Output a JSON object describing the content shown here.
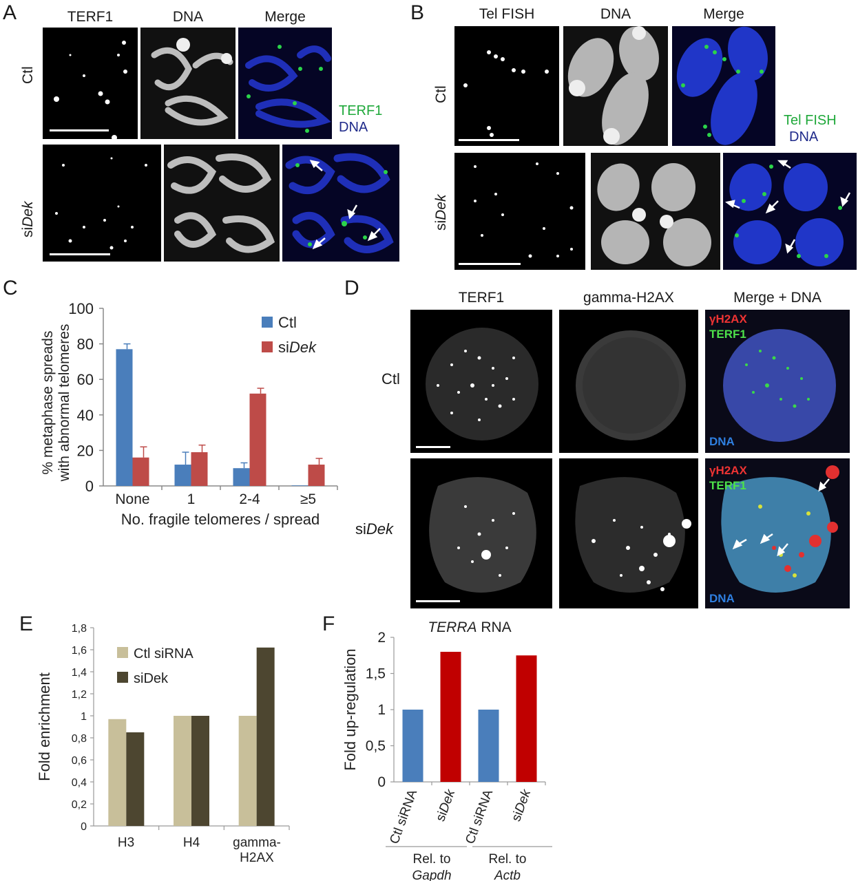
{
  "panels": {
    "A": {
      "letter": "A",
      "columns": [
        "TERF1",
        "DNA",
        "Merge"
      ],
      "rows": [
        "Ctl",
        "siDek"
      ],
      "legend": [
        "TERF1",
        "DNA"
      ]
    },
    "B": {
      "letter": "B",
      "columns": [
        "Tel FISH",
        "DNA",
        "Merge"
      ],
      "rows": [
        "Ctl",
        "siDek"
      ],
      "legend": [
        "Tel FISH",
        "DNA"
      ]
    },
    "D": {
      "letter": "D",
      "columns": [
        "TERF1",
        "gamma-H2AX",
        "Merge + DNA"
      ],
      "rows": [
        "Ctl",
        "siDek"
      ],
      "overlay": [
        "γH2AX",
        "TERF1",
        "DNA"
      ]
    }
  },
  "charts": {
    "C": {
      "letter": "C"
    },
    "E": {
      "letter": "E"
    },
    "F": {
      "letter": "F"
    }
  },
  "chart_data": [
    {
      "panel": "C",
      "type": "bar",
      "ylabel": "% metaphase spreads with abnormal telomeres",
      "xlabel": "No. fragile telomeres / spread",
      "categories": [
        "None",
        "1",
        "2-4",
        "≥5"
      ],
      "ylim": [
        0,
        100
      ],
      "yticks": [
        0,
        20,
        40,
        60,
        80,
        100
      ],
      "legend_position": "top-right",
      "series": [
        {
          "name": "Ctl",
          "color": "#4a7ebb",
          "values": [
            77,
            12,
            10,
            0.3
          ],
          "errors": [
            3,
            7,
            3,
            0
          ]
        },
        {
          "name": "siDek",
          "color": "#be4b48",
          "values": [
            16,
            19,
            52,
            12
          ],
          "errors": [
            6,
            4,
            3,
            3.5
          ]
        }
      ]
    },
    {
      "panel": "E",
      "type": "bar",
      "ylabel": "Fold enrichment",
      "categories": [
        "H3",
        "H4",
        "gamma-H2AX"
      ],
      "ylim": [
        0,
        1.8
      ],
      "yticks": [
        "0",
        "0,2",
        "0,4",
        "0,6",
        "0,8",
        "1",
        "1,2",
        "1,4",
        "1,6",
        "1,8"
      ],
      "legend_position": "top-left",
      "series": [
        {
          "name": "Ctl siRNA",
          "color": "#c8bf9a",
          "values": [
            0.97,
            1.0,
            1.0
          ]
        },
        {
          "name": "siDek",
          "color": "#4d4630",
          "values": [
            0.85,
            1.0,
            1.62
          ]
        }
      ]
    },
    {
      "panel": "F",
      "type": "bar",
      "title": "TERRA RNA",
      "ylabel": "Fold up-regulation",
      "categories": [
        "Ctl siRNA",
        "siDek",
        "Ctl siRNA",
        "siDek"
      ],
      "values": [
        1.0,
        1.8,
        1.0,
        1.75
      ],
      "colors": [
        "#4a7ebb",
        "#c00000",
        "#4a7ebb",
        "#c00000"
      ],
      "ylim": [
        0,
        2
      ],
      "yticks": [
        "0",
        "0,5",
        "1",
        "1,5",
        "2"
      ],
      "groups": [
        {
          "label": "Rel. to",
          "gene": "Gapdh"
        },
        {
          "label": "Rel. to",
          "gene": "Actb"
        }
      ]
    }
  ]
}
